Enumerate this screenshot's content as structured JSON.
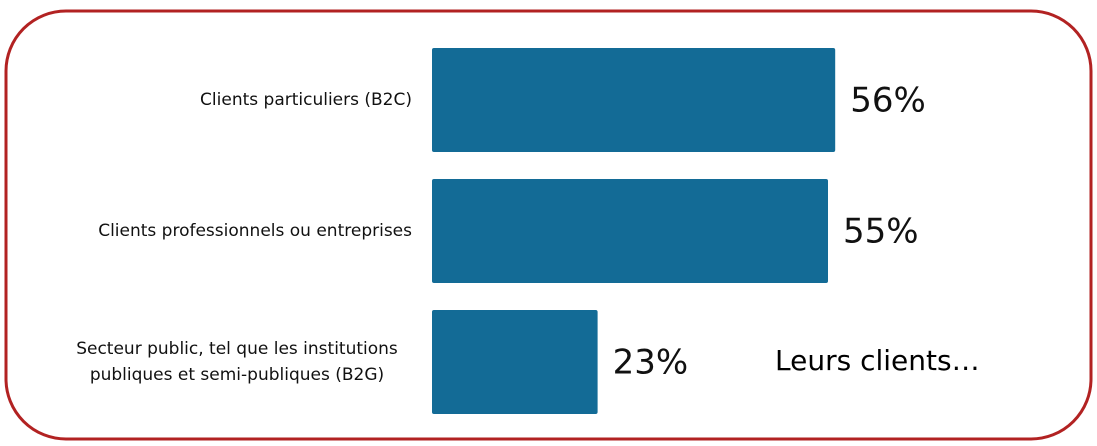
{
  "chart_data": {
    "type": "hbar",
    "categories": [
      "Clients particuliers (B2C)",
      "Clients professionnels ou entreprises",
      "Secteur public, tel que les institutions publiques et semi-publiques (B2G)"
    ],
    "values": [
      56,
      55,
      23
    ],
    "value_labels": [
      "56%",
      "55%",
      "23%"
    ],
    "color": "#136b96",
    "annotation": "Leurs clients…",
    "border_color": "#b22222"
  }
}
